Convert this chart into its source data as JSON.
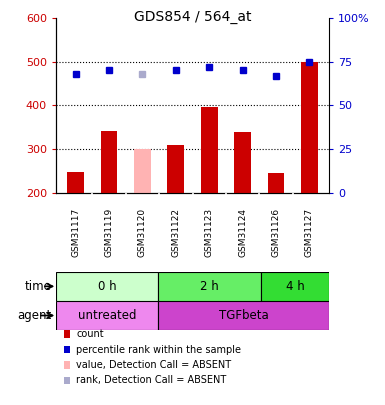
{
  "title": "GDS854 / 564_at",
  "samples": [
    "GSM31117",
    "GSM31119",
    "GSM31120",
    "GSM31122",
    "GSM31123",
    "GSM31124",
    "GSM31126",
    "GSM31127"
  ],
  "count_values": [
    248,
    342,
    null,
    310,
    395,
    340,
    245,
    500
  ],
  "count_absent": [
    null,
    null,
    300,
    null,
    null,
    null,
    null,
    null
  ],
  "rank_values": [
    68,
    70,
    null,
    70,
    72,
    70,
    67,
    75
  ],
  "rank_absent": [
    null,
    null,
    68,
    null,
    null,
    null,
    null,
    null
  ],
  "ylim_left": [
    200,
    600
  ],
  "ylim_right": [
    0,
    100
  ],
  "yticks_left": [
    200,
    300,
    400,
    500,
    600
  ],
  "yticks_right": [
    0,
    25,
    50,
    75,
    100
  ],
  "ytick_labels_left": [
    "200",
    "300",
    "400",
    "500",
    "600"
  ],
  "ytick_labels_right": [
    "0",
    "25",
    "50",
    "75",
    "100%"
  ],
  "dotted_lines": [
    300,
    400,
    500
  ],
  "bar_color": "#cc0000",
  "bar_absent_color": "#ffb3b3",
  "rank_color": "#0000cc",
  "rank_absent_color": "#aaaacc",
  "time_groups": [
    {
      "label": "0 h",
      "start": 0,
      "end": 3,
      "color": "#ccffcc"
    },
    {
      "label": "2 h",
      "start": 3,
      "end": 6,
      "color": "#66ee66"
    },
    {
      "label": "4 h",
      "start": 6,
      "end": 8,
      "color": "#33dd33"
    }
  ],
  "agent_groups": [
    {
      "label": "untreated",
      "start": 0,
      "end": 3,
      "color": "#ee88ee"
    },
    {
      "label": "TGFbeta",
      "start": 3,
      "end": 8,
      "color": "#cc44cc"
    }
  ],
  "legend_items": [
    {
      "color": "#cc0000",
      "label": "count"
    },
    {
      "color": "#0000cc",
      "label": "percentile rank within the sample"
    },
    {
      "color": "#ffb3b3",
      "label": "value, Detection Call = ABSENT"
    },
    {
      "color": "#aaaacc",
      "label": "rank, Detection Call = ABSENT"
    }
  ],
  "bar_color_left": "#cc0000",
  "ylabel_right_color": "#0000cc",
  "bar_width": 0.5,
  "gray_bg": "#c8c8c8"
}
